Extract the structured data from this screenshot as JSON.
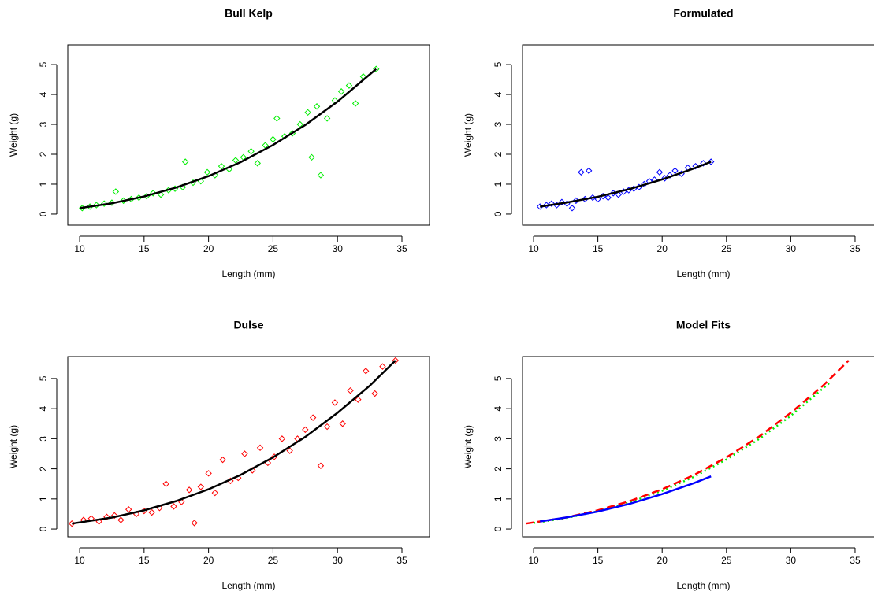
{
  "chart_data": [
    {
      "type": "scatter",
      "title": "Bull Kelp",
      "x_label": "Length (mm)",
      "y_label": "Weight (g)",
      "xlim": [
        9.08,
        37.14
      ],
      "ylim": [
        -0.37,
        5.66
      ],
      "xticks": [
        10,
        15,
        20,
        25,
        30,
        35
      ],
      "yticks": [
        0,
        1,
        2,
        3,
        4,
        5
      ],
      "series": [
        {
          "mode": "points",
          "marker": "diamond",
          "color": "#00ee00",
          "x": [
            10.2,
            10.8,
            11.3,
            11.9,
            12.5,
            12.8,
            13.4,
            14.0,
            14.6,
            15.2,
            15.7,
            16.3,
            16.9,
            17.4,
            18.0,
            18.2,
            18.8,
            19.4,
            19.9,
            20.5,
            21.0,
            21.6,
            22.1,
            22.7,
            23.3,
            23.8,
            24.4,
            25.0,
            25.3,
            25.9,
            26.5,
            27.1,
            27.7,
            28.0,
            28.4,
            28.7,
            29.2,
            29.8,
            30.3,
            30.9,
            31.4,
            32.0,
            33.0
          ],
          "values": [
            0.2,
            0.25,
            0.3,
            0.35,
            0.38,
            0.75,
            0.45,
            0.5,
            0.55,
            0.6,
            0.7,
            0.65,
            0.8,
            0.85,
            0.9,
            1.75,
            1.05,
            1.1,
            1.4,
            1.3,
            1.6,
            1.5,
            1.8,
            1.9,
            2.1,
            1.7,
            2.3,
            2.5,
            3.2,
            2.6,
            2.7,
            3.0,
            3.4,
            1.9,
            3.6,
            1.3,
            3.2,
            3.8,
            4.1,
            4.3,
            3.7,
            4.6,
            4.85
          ]
        },
        {
          "mode": "line",
          "dash": "solid",
          "color": "#000000",
          "x": [
            10,
            12.5,
            15,
            17.5,
            20,
            22.5,
            25,
            27.5,
            30,
            33
          ],
          "values": [
            0.2,
            0.36,
            0.59,
            0.89,
            1.27,
            1.74,
            2.31,
            2.98,
            3.76,
            4.85
          ]
        }
      ]
    },
    {
      "type": "scatter",
      "title": "Formulated",
      "x_label": "Length (mm)",
      "y_label": "Weight (g)",
      "xlim": [
        9.14,
        37.27
      ],
      "ylim": [
        -0.37,
        5.66
      ],
      "xticks": [
        10,
        15,
        20,
        25,
        30,
        35
      ],
      "yticks": [
        0,
        1,
        2,
        3,
        4,
        5
      ],
      "series": [
        {
          "mode": "points",
          "marker": "diamond",
          "color": "#0000ff",
          "x": [
            10.5,
            11.0,
            11.4,
            11.8,
            12.2,
            12.6,
            13.0,
            13.3,
            13.7,
            14.0,
            14.3,
            14.6,
            15.0,
            15.4,
            15.8,
            16.2,
            16.6,
            17.0,
            17.4,
            17.8,
            18.2,
            18.6,
            19.0,
            19.4,
            19.8,
            20.2,
            20.6,
            21.0,
            21.5,
            22.0,
            22.6,
            23.2,
            23.8
          ],
          "values": [
            0.25,
            0.3,
            0.35,
            0.3,
            0.4,
            0.35,
            0.2,
            0.45,
            1.4,
            0.5,
            1.45,
            0.55,
            0.5,
            0.6,
            0.55,
            0.7,
            0.65,
            0.75,
            0.8,
            0.85,
            0.9,
            1.0,
            1.1,
            1.15,
            1.4,
            1.2,
            1.3,
            1.45,
            1.35,
            1.55,
            1.6,
            1.7,
            1.75
          ]
        },
        {
          "mode": "line",
          "dash": "solid",
          "color": "#000000",
          "x": [
            10.5,
            12.5,
            15,
            17.5,
            20,
            22.5,
            23.8
          ],
          "values": [
            0.25,
            0.38,
            0.58,
            0.84,
            1.16,
            1.53,
            1.75
          ]
        }
      ]
    },
    {
      "type": "scatter",
      "title": "Dulse",
      "x_label": "Length (mm)",
      "y_label": "Weight (g)",
      "xlim": [
        9.08,
        37.14
      ],
      "ylim": [
        -0.26,
        5.73
      ],
      "xticks": [
        10,
        15,
        20,
        25,
        30,
        35
      ],
      "yticks": [
        0,
        1,
        2,
        3,
        4,
        5
      ],
      "series": [
        {
          "mode": "points",
          "marker": "diamond",
          "color": "#ff0000",
          "x": [
            9.4,
            10.3,
            10.9,
            11.5,
            12.1,
            12.7,
            13.2,
            13.8,
            14.4,
            15.0,
            15.6,
            16.2,
            16.7,
            17.3,
            17.9,
            18.5,
            18.9,
            19.4,
            20.0,
            20.5,
            21.1,
            21.7,
            22.3,
            22.8,
            23.4,
            24.0,
            24.6,
            25.1,
            25.7,
            26.3,
            26.9,
            27.5,
            28.1,
            28.7,
            29.2,
            29.8,
            30.4,
            31.0,
            31.6,
            32.2,
            32.9,
            33.5,
            34.5
          ],
          "values": [
            0.18,
            0.3,
            0.35,
            0.25,
            0.4,
            0.45,
            0.3,
            0.65,
            0.5,
            0.6,
            0.55,
            0.7,
            1.5,
            0.75,
            0.9,
            1.3,
            0.2,
            1.4,
            1.85,
            1.2,
            2.3,
            1.6,
            1.7,
            2.5,
            1.95,
            2.7,
            2.2,
            2.4,
            3.0,
            2.6,
            3.0,
            3.3,
            3.7,
            2.1,
            3.4,
            4.2,
            3.5,
            4.6,
            4.3,
            5.25,
            4.5,
            5.4,
            5.6
          ]
        },
        {
          "mode": "line",
          "dash": "solid",
          "color": "#000000",
          "x": [
            9.4,
            12.5,
            15,
            17.5,
            20,
            22.5,
            25,
            27.5,
            30,
            32.5,
            34.5
          ],
          "values": [
            0.18,
            0.38,
            0.62,
            0.93,
            1.32,
            1.8,
            2.38,
            3.06,
            3.86,
            4.76,
            5.6
          ]
        }
      ]
    },
    {
      "type": "line",
      "title": "Model Fits",
      "x_label": "Length (mm)",
      "y_label": "Weight (g)",
      "xlim": [
        9.14,
        37.27
      ],
      "ylim": [
        -0.26,
        5.73
      ],
      "xticks": [
        10,
        15,
        20,
        25,
        30,
        35
      ],
      "yticks": [
        0,
        1,
        2,
        3,
        4,
        5
      ],
      "series": [
        {
          "mode": "line",
          "dash": "dotted",
          "color": "#00ee00",
          "x": [
            10,
            12.5,
            15,
            17.5,
            20,
            22.5,
            25,
            27.5,
            30,
            33
          ],
          "values": [
            0.2,
            0.36,
            0.59,
            0.89,
            1.27,
            1.74,
            2.31,
            2.98,
            3.76,
            4.85
          ]
        },
        {
          "mode": "line",
          "dash": "dashed",
          "color": "#ff0000",
          "x": [
            9.4,
            12.5,
            15,
            17.5,
            20,
            22.5,
            25,
            27.5,
            30,
            32.5,
            34.5
          ],
          "values": [
            0.18,
            0.38,
            0.62,
            0.93,
            1.32,
            1.8,
            2.38,
            3.06,
            3.86,
            4.76,
            5.6
          ]
        },
        {
          "mode": "line",
          "dash": "solid",
          "color": "#0000ff",
          "x": [
            10.5,
            12.5,
            15,
            17.5,
            20,
            22.5,
            23.8
          ],
          "values": [
            0.25,
            0.38,
            0.58,
            0.84,
            1.16,
            1.53,
            1.75
          ]
        }
      ]
    }
  ]
}
